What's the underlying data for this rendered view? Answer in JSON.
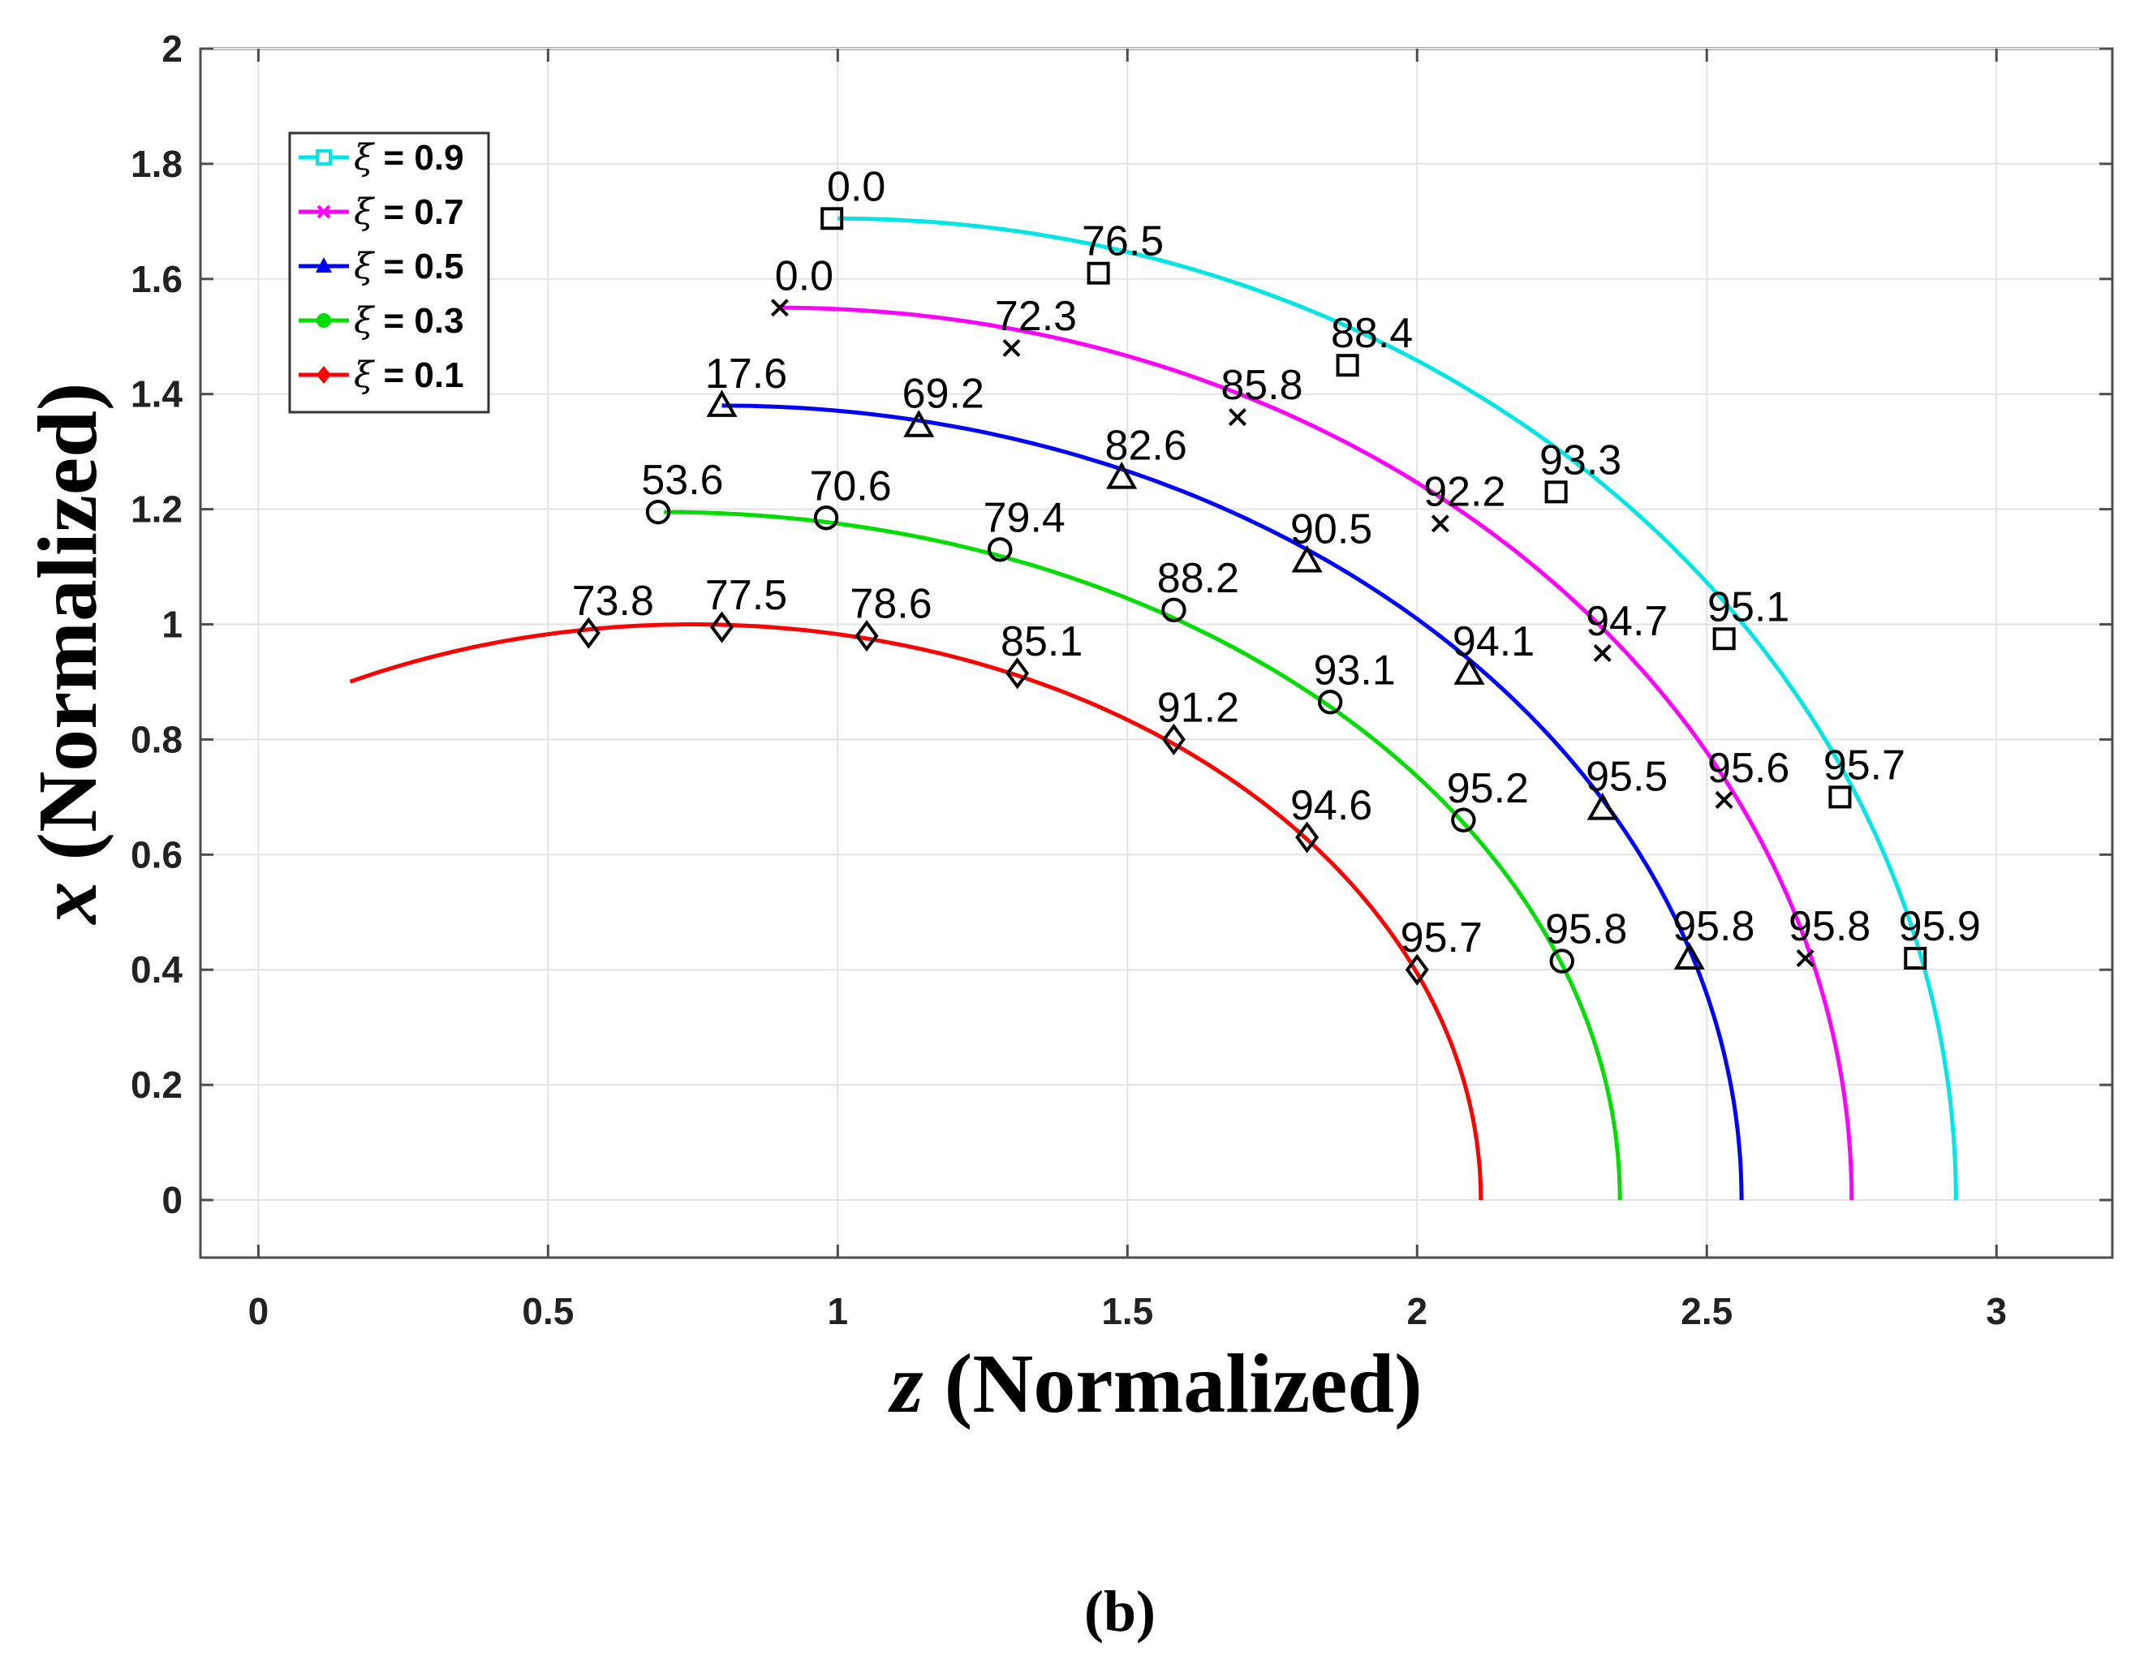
{
  "chart_data": {
    "type": "line",
    "title": "",
    "xlabel": {
      "var": "z",
      "rest": " (Normalized)"
    },
    "ylabel": {
      "var": "x",
      "rest": " (Normalized)"
    },
    "xlim": [
      -0.1,
      3.2
    ],
    "ylim": [
      -0.1,
      2.0
    ],
    "xticks": [
      "0",
      "0.5",
      "1",
      "1.5",
      "2",
      "2.5",
      "3"
    ],
    "xtick_values": [
      0,
      0.5,
      1,
      1.5,
      2,
      2.5,
      3
    ],
    "yticks": [
      "0",
      "0.2",
      "0.4",
      "0.6",
      "0.8",
      "1",
      "1.2",
      "1.4",
      "1.6",
      "1.8",
      "2"
    ],
    "ytick_values": [
      0,
      0.2,
      0.4,
      0.6,
      0.8,
      1,
      1.2,
      1.4,
      1.6,
      1.8,
      2
    ],
    "grid": true,
    "legend_position": "top-left",
    "panel_label": "(b)",
    "series": [
      {
        "name": "ξ = 0.9",
        "symbol": "ξ",
        "value_text": " = 0.9",
        "color": "#00e5e5",
        "marker": "square",
        "curve": {
          "cz": 1.0,
          "rz": 1.93,
          "rx": 1.705,
          "t0": 0.0
        },
        "points": [
          {
            "z": 0.99,
            "x": 1.705,
            "label": "0.0"
          },
          {
            "z": 1.45,
            "x": 1.61,
            "label": "76.5"
          },
          {
            "z": 1.88,
            "x": 1.45,
            "label": "88.4"
          },
          {
            "z": 2.24,
            "x": 1.23,
            "label": "93.3"
          },
          {
            "z": 2.53,
            "x": 0.975,
            "label": "95.1"
          },
          {
            "z": 2.73,
            "x": 0.7,
            "label": "95.7"
          },
          {
            "z": 2.86,
            "x": 0.42,
            "label": "95.9"
          }
        ]
      },
      {
        "name": "ξ = 0.7",
        "symbol": "ξ",
        "value_text": " = 0.7",
        "color": "#ff00ff",
        "marker": "x",
        "curve": {
          "cz": 0.9,
          "rz": 1.85,
          "rx": 1.55,
          "t0": 0.0
        },
        "points": [
          {
            "z": 0.9,
            "x": 1.55,
            "label": "0.0"
          },
          {
            "z": 1.3,
            "x": 1.48,
            "label": "72.3"
          },
          {
            "z": 1.69,
            "x": 1.36,
            "label": "85.8"
          },
          {
            "z": 2.04,
            "x": 1.175,
            "label": "92.2"
          },
          {
            "z": 2.32,
            "x": 0.95,
            "label": "94.7"
          },
          {
            "z": 2.53,
            "x": 0.695,
            "label": "95.6"
          },
          {
            "z": 2.67,
            "x": 0.42,
            "label": "95.8"
          }
        ]
      },
      {
        "name": "ξ = 0.5",
        "symbol": "ξ",
        "value_text": " = 0.5",
        "color": "#0000ff",
        "marker": "triangle",
        "curve": {
          "cz": 0.8,
          "rz": 1.76,
          "rx": 1.38,
          "t0": 0.0
        },
        "points": [
          {
            "z": 0.8,
            "x": 1.38,
            "label": "17.6"
          },
          {
            "z": 1.14,
            "x": 1.345,
            "label": "69.2"
          },
          {
            "z": 1.49,
            "x": 1.255,
            "label": "82.6"
          },
          {
            "z": 1.81,
            "x": 1.11,
            "label": "90.5"
          },
          {
            "z": 2.09,
            "x": 0.915,
            "label": "94.1"
          },
          {
            "z": 2.32,
            "x": 0.68,
            "label": "95.5"
          },
          {
            "z": 2.47,
            "x": 0.42,
            "label": "95.8"
          }
        ]
      },
      {
        "name": "ξ = 0.3",
        "symbol": "ξ",
        "value_text": " = 0.3",
        "color": "#00dd00",
        "marker": "circle",
        "curve": {
          "cz": 0.7,
          "rz": 1.65,
          "rx": 1.195,
          "t0": 0.0
        },
        "points": [
          {
            "z": 0.69,
            "x": 1.195,
            "label": "53.6"
          },
          {
            "z": 0.98,
            "x": 1.185,
            "label": "70.6"
          },
          {
            "z": 1.28,
            "x": 1.13,
            "label": "79.4"
          },
          {
            "z": 1.58,
            "x": 1.025,
            "label": "88.2"
          },
          {
            "z": 1.85,
            "x": 0.865,
            "label": "93.1"
          },
          {
            "z": 2.08,
            "x": 0.66,
            "label": "95.2"
          },
          {
            "z": 2.25,
            "x": 0.415,
            "label": "95.8"
          }
        ]
      },
      {
        "name": "ξ = 0.1",
        "symbol": "ξ",
        "value_text": " = 0.1",
        "color": "#ff0000",
        "marker": "diamond",
        "curve": {
          "cz": 0.75,
          "rz": 1.36,
          "rx": 1.0,
          "t0": -0.45
        },
        "points": [
          {
            "z": 0.57,
            "x": 0.985,
            "label": "73.8"
          },
          {
            "z": 0.8,
            "x": 0.995,
            "label": "77.5"
          },
          {
            "z": 1.05,
            "x": 0.98,
            "label": "78.6"
          },
          {
            "z": 1.31,
            "x": 0.915,
            "label": "85.1"
          },
          {
            "z": 1.58,
            "x": 0.8,
            "label": "91.2"
          },
          {
            "z": 1.81,
            "x": 0.63,
            "label": "94.6"
          },
          {
            "z": 2.0,
            "x": 0.4,
            "label": "95.7"
          }
        ]
      }
    ]
  }
}
